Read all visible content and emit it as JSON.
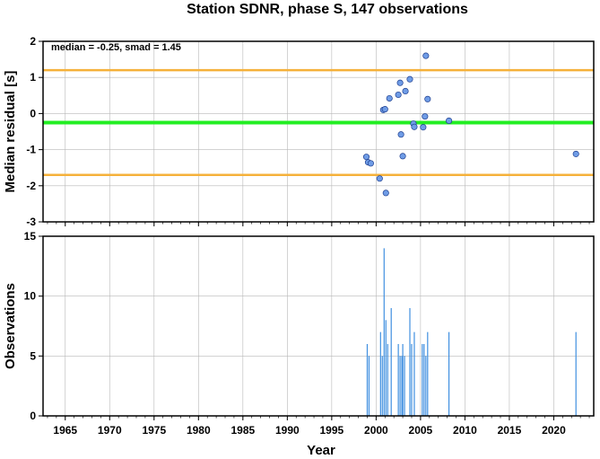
{
  "chart_data": [
    {
      "type": "scatter",
      "title": "Station SDNR, phase S, 147 observations",
      "ylabel": "Median residual [s]",
      "annotation": "median = -0.25, smad = 1.45",
      "xlim": [
        1962.5,
        2024.5
      ],
      "ylim": [
        -3,
        2
      ],
      "yticks": [
        "-3",
        "-2",
        "-1",
        "0",
        "1",
        "2"
      ],
      "median_line": -0.25,
      "upper_line": 1.2,
      "lower_line": -1.7,
      "grid": true,
      "colors": {
        "points": "#6f9ce6",
        "median": "#22ee22",
        "bounds": "#f5b13a"
      },
      "points": [
        {
          "x": 1998.9,
          "y": -1.2
        },
        {
          "x": 1999.1,
          "y": -1.35
        },
        {
          "x": 1999.4,
          "y": -1.38
        },
        {
          "x": 2000.4,
          "y": -1.8
        },
        {
          "x": 2000.8,
          "y": 0.1
        },
        {
          "x": 2001.0,
          "y": 0.12
        },
        {
          "x": 2001.1,
          "y": -2.2
        },
        {
          "x": 2001.5,
          "y": 0.42
        },
        {
          "x": 2002.5,
          "y": 0.52
        },
        {
          "x": 2002.7,
          "y": 0.85
        },
        {
          "x": 2002.8,
          "y": -0.58
        },
        {
          "x": 2003.0,
          "y": -1.18
        },
        {
          "x": 2003.3,
          "y": 0.62
        },
        {
          "x": 2003.8,
          "y": 0.95
        },
        {
          "x": 2004.2,
          "y": -0.28
        },
        {
          "x": 2004.3,
          "y": -0.37
        },
        {
          "x": 2005.3,
          "y": -0.38
        },
        {
          "x": 2005.5,
          "y": -0.08
        },
        {
          "x": 2005.6,
          "y": 1.6
        },
        {
          "x": 2005.8,
          "y": 0.4
        },
        {
          "x": 2008.2,
          "y": -0.2
        },
        {
          "x": 2022.5,
          "y": -1.12
        }
      ]
    },
    {
      "type": "bar",
      "ylabel": "Observations",
      "xlabel": "Year",
      "xlim": [
        1962.5,
        2024.5
      ],
      "ylim": [
        0,
        15
      ],
      "xticks": [
        "1965",
        "1970",
        "1975",
        "1980",
        "1985",
        "1990",
        "1995",
        "2000",
        "2005",
        "2010",
        "2015",
        "2020"
      ],
      "yticks": [
        "0",
        "5",
        "10",
        "15"
      ],
      "grid": true,
      "colors": {
        "bars": "#3f8fe0"
      },
      "bars": [
        {
          "x": 1999.0,
          "value": 6
        },
        {
          "x": 1999.2,
          "value": 5
        },
        {
          "x": 2000.5,
          "value": 7
        },
        {
          "x": 2000.7,
          "value": 5
        },
        {
          "x": 2000.9,
          "value": 14
        },
        {
          "x": 2001.1,
          "value": 8
        },
        {
          "x": 2001.3,
          "value": 6
        },
        {
          "x": 2001.7,
          "value": 9
        },
        {
          "x": 2002.5,
          "value": 6
        },
        {
          "x": 2002.7,
          "value": 5
        },
        {
          "x": 2002.9,
          "value": 5
        },
        {
          "x": 2003.0,
          "value": 6
        },
        {
          "x": 2003.2,
          "value": 5
        },
        {
          "x": 2003.8,
          "value": 9
        },
        {
          "x": 2004.0,
          "value": 6
        },
        {
          "x": 2004.3,
          "value": 7
        },
        {
          "x": 2005.2,
          "value": 6
        },
        {
          "x": 2005.4,
          "value": 6
        },
        {
          "x": 2005.6,
          "value": 5
        },
        {
          "x": 2005.8,
          "value": 7
        },
        {
          "x": 2008.2,
          "value": 7
        },
        {
          "x": 2022.5,
          "value": 7
        }
      ]
    }
  ]
}
